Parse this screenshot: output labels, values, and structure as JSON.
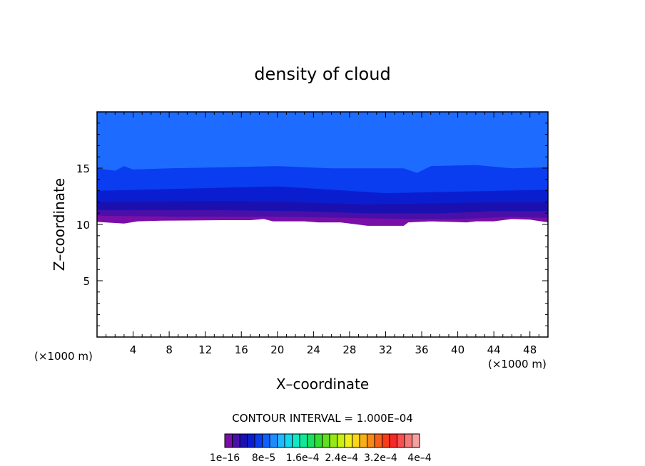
{
  "chart_data": {
    "type": "heatmap",
    "title": "density of cloud",
    "xlabel": "X–coordinate",
    "ylabel": "Z–coordinate",
    "x_unit_left": "(×1000 m)",
    "x_unit_right": "(×1000 m)",
    "xlim": [
      0,
      50
    ],
    "ylim": [
      0,
      20
    ],
    "x_ticks": [
      4,
      8,
      12,
      16,
      20,
      24,
      28,
      32,
      36,
      40,
      44,
      48
    ],
    "x_tick_labels": [
      "4",
      "8",
      "12",
      "16",
      "20",
      "24",
      "28",
      "32",
      "36",
      "40",
      "44",
      "48"
    ],
    "y_ticks": [
      5,
      10,
      15
    ],
    "y_tick_labels": [
      "5",
      "10",
      "15"
    ],
    "contour_interval_text": "CONTOUR INTERVAL = 1.000E–04",
    "colorbar": {
      "colors": [
        "#7a0fa8",
        "#4a0fa8",
        "#1a10b0",
        "#0a1ed0",
        "#0a3cf0",
        "#1060ff",
        "#1e8cff",
        "#20b8ff",
        "#14d8f0",
        "#10e8c8",
        "#10e898",
        "#18e060",
        "#30e030",
        "#60e020",
        "#98e818",
        "#c8f010",
        "#f0f018",
        "#f8d818",
        "#f8b018",
        "#f88818",
        "#f86018",
        "#f83c18",
        "#f82828",
        "#f85050",
        "#f87878",
        "#f8a0a0"
      ],
      "tick_labels": [
        "1e–16",
        "8e–5",
        "1.6e–4",
        "2.4e–4",
        "3.2e–4",
        "4e–4"
      ]
    },
    "field": {
      "description": "cloud density layered in altitude; cloud deck from ~10 to ~20 km, zero below",
      "bands": [
        {
          "color": "#7a0fa8",
          "z_bottom_profile": [
            [
              0,
              10.25
            ],
            [
              3,
              10.1
            ],
            [
              4.5,
              10.3
            ],
            [
              7,
              10.35
            ],
            [
              14,
              10.4
            ],
            [
              17,
              10.4
            ],
            [
              18.5,
              10.5
            ],
            [
              19.5,
              10.3
            ],
            [
              20,
              10.3
            ],
            [
              23,
              10.3
            ],
            [
              24.5,
              10.2
            ],
            [
              27,
              10.2
            ],
            [
              29,
              10.0
            ],
            [
              30,
              9.9
            ],
            [
              34,
              9.9
            ],
            [
              34.5,
              10.2
            ],
            [
              37,
              10.3
            ],
            [
              41,
              10.2
            ],
            [
              42,
              10.3
            ],
            [
              44,
              10.3
            ],
            [
              46,
              10.5
            ],
            [
              48,
              10.45
            ],
            [
              50,
              10.2
            ]
          ],
          "z_top_profile": [
            [
              0,
              10.8
            ],
            [
              10,
              10.7
            ],
            [
              20,
              10.7
            ],
            [
              28,
              10.6
            ],
            [
              34,
              10.5
            ],
            [
              40,
              10.5
            ],
            [
              46,
              10.7
            ],
            [
              50,
              10.6
            ]
          ]
        },
        {
          "color": "#4a0fa8",
          "z_bottom_profile": [
            [
              0,
              10.8
            ],
            [
              10,
              10.7
            ],
            [
              20,
              10.7
            ],
            [
              28,
              10.6
            ],
            [
              34,
              10.5
            ],
            [
              40,
              10.5
            ],
            [
              46,
              10.7
            ],
            [
              50,
              10.6
            ]
          ],
          "z_top_profile": [
            [
              0,
              11.3
            ],
            [
              12,
              11.3
            ],
            [
              22,
              11.2
            ],
            [
              30,
              11.0
            ],
            [
              38,
              11.0
            ],
            [
              44,
              11.2
            ],
            [
              50,
              11.2
            ]
          ]
        },
        {
          "color": "#1a10b0",
          "z_bottom_profile": [
            [
              0,
              11.3
            ],
            [
              12,
              11.3
            ],
            [
              22,
              11.2
            ],
            [
              30,
              11.0
            ],
            [
              38,
              11.0
            ],
            [
              44,
              11.2
            ],
            [
              50,
              11.2
            ]
          ],
          "z_top_profile": [
            [
              0,
              12.0
            ],
            [
              14,
              12.1
            ],
            [
              22,
              12.0
            ],
            [
              30,
              11.8
            ],
            [
              38,
              11.9
            ],
            [
              44,
              12.0
            ],
            [
              50,
              12.0
            ]
          ]
        },
        {
          "color": "#0a1ed0",
          "z_bottom_profile": [
            [
              0,
              12.0
            ],
            [
              14,
              12.1
            ],
            [
              22,
              12.0
            ],
            [
              30,
              11.8
            ],
            [
              38,
              11.9
            ],
            [
              44,
              12.0
            ],
            [
              50,
              12.0
            ]
          ],
          "z_top_profile": [
            [
              0,
              13.0
            ],
            [
              10,
              13.2
            ],
            [
              20,
              13.4
            ],
            [
              26,
              13.1
            ],
            [
              32,
              12.8
            ],
            [
              38,
              12.9
            ],
            [
              44,
              13.0
            ],
            [
              50,
              13.1
            ]
          ]
        },
        {
          "color": "#0a3cf0",
          "z_bottom_profile": [
            [
              0,
              13.0
            ],
            [
              10,
              13.2
            ],
            [
              20,
              13.4
            ],
            [
              26,
              13.1
            ],
            [
              32,
              12.8
            ],
            [
              38,
              12.9
            ],
            [
              44,
              13.0
            ],
            [
              50,
              13.1
            ]
          ],
          "z_top_profile": [
            [
              0,
              15.0
            ],
            [
              2,
              14.8
            ],
            [
              3,
              15.2
            ],
            [
              4,
              14.9
            ],
            [
              8,
              15.0
            ],
            [
              14,
              15.1
            ],
            [
              20,
              15.2
            ],
            [
              26,
              15.0
            ],
            [
              30,
              15.0
            ],
            [
              34,
              15.0
            ],
            [
              35.5,
              14.6
            ],
            [
              37,
              15.2
            ],
            [
              42,
              15.3
            ],
            [
              46,
              15.0
            ],
            [
              50,
              15.1
            ]
          ]
        },
        {
          "color": "#1e6cff",
          "z_bottom_profile": [
            [
              0,
              15.0
            ],
            [
              2,
              14.8
            ],
            [
              3,
              15.2
            ],
            [
              4,
              14.9
            ],
            [
              8,
              15.0
            ],
            [
              14,
              15.1
            ],
            [
              20,
              15.2
            ],
            [
              26,
              15.0
            ],
            [
              30,
              15.0
            ],
            [
              34,
              15.0
            ],
            [
              35.5,
              14.6
            ],
            [
              37,
              15.2
            ],
            [
              42,
              15.3
            ],
            [
              46,
              15.0
            ],
            [
              50,
              15.1
            ]
          ],
          "z_top_profile": [
            [
              0,
              20
            ],
            [
              50,
              20
            ]
          ]
        }
      ]
    }
  }
}
